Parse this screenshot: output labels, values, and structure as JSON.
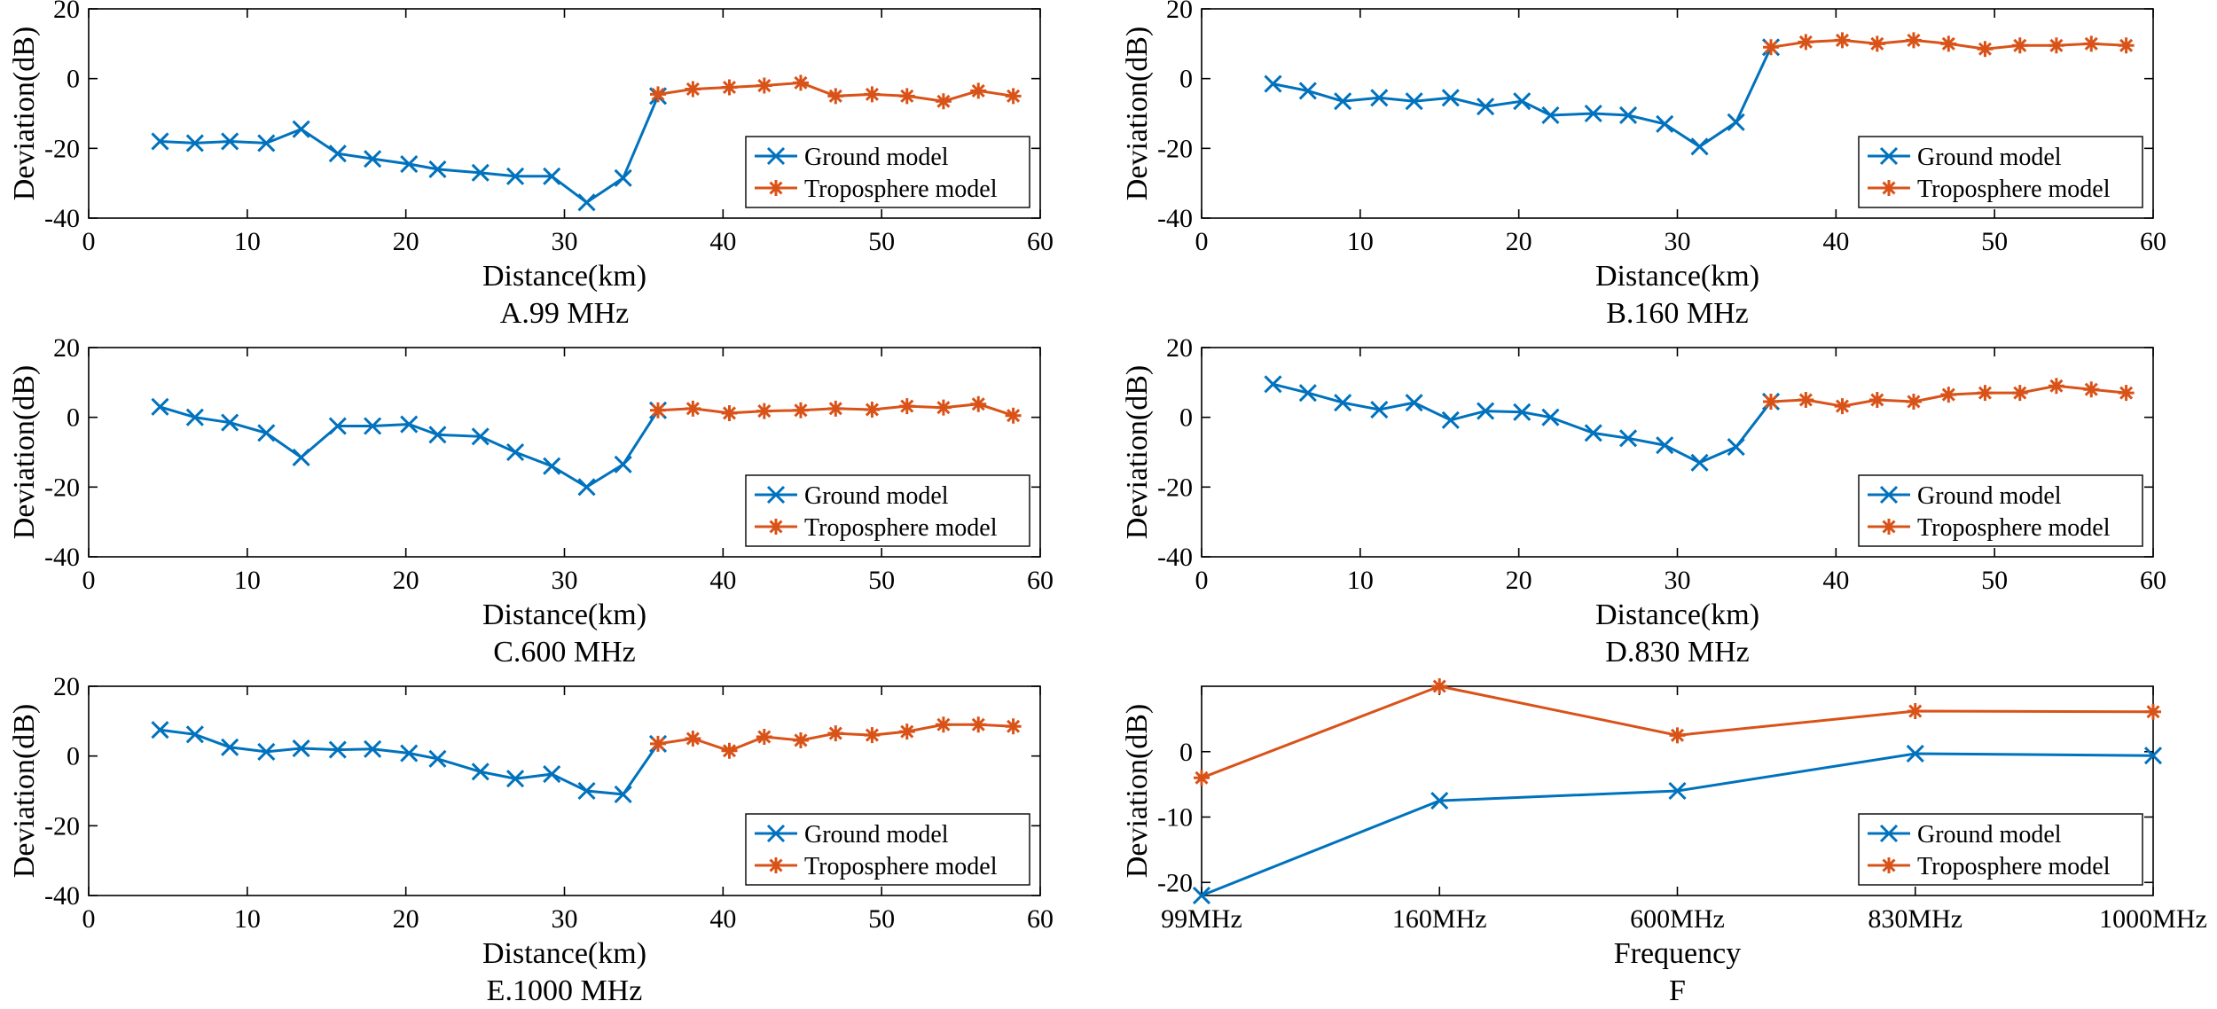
{
  "colors": {
    "ground": "#0072BD",
    "troposphere": "#D95319"
  },
  "chart_data": [
    {
      "id": "A",
      "type": "line",
      "caption": "A.99 MHz",
      "xlabel": "Distance(km)",
      "ylabel": "Deviation(dB)",
      "xlim": [
        0,
        60
      ],
      "ylim": [
        -40,
        20
      ],
      "xticks": [
        0,
        10,
        20,
        30,
        40,
        50,
        60
      ],
      "yticks": [
        -40,
        -20,
        0,
        20
      ],
      "legend": [
        "Ground model",
        "Troposphere model"
      ],
      "series": [
        {
          "name": "Ground model",
          "marker": "x",
          "x": [
            4.5,
            6.7,
            8.9,
            11.2,
            13.4,
            15.7,
            17.9,
            20.2,
            22.0,
            24.7,
            26.9,
            29.2,
            31.4,
            33.7,
            35.9
          ],
          "y": [
            -18,
            -18.5,
            -18,
            -18.5,
            -14.5,
            -21.5,
            -23,
            -24.5,
            -26,
            -27,
            -28,
            -28,
            -35.5,
            -28.5,
            -5
          ]
        },
        {
          "name": "Troposphere model",
          "marker": "*",
          "x": [
            35.9,
            38.1,
            40.4,
            42.6,
            44.9,
            47.1,
            49.4,
            51.6,
            53.9,
            56.1,
            58.3
          ],
          "y": [
            -4.5,
            -3,
            -2.5,
            -2,
            -1.2,
            -5,
            -4.5,
            -5,
            -6.5,
            -3.5,
            -5
          ]
        }
      ]
    },
    {
      "id": "B",
      "type": "line",
      "caption": "B.160 MHz",
      "xlabel": "Distance(km)",
      "ylabel": "Deviation(dB)",
      "xlim": [
        0,
        60
      ],
      "ylim": [
        -40,
        20
      ],
      "xticks": [
        0,
        10,
        20,
        30,
        40,
        50,
        60
      ],
      "yticks": [
        -40,
        -20,
        0,
        20
      ],
      "legend": [
        "Ground model",
        "Troposphere model"
      ],
      "series": [
        {
          "name": "Ground model",
          "marker": "x",
          "x": [
            4.5,
            6.7,
            8.9,
            11.2,
            13.4,
            15.7,
            17.9,
            20.2,
            22.0,
            24.7,
            26.9,
            29.2,
            31.4,
            33.7,
            35.9
          ],
          "y": [
            -1.5,
            -3.5,
            -6.5,
            -5.5,
            -6.5,
            -5.5,
            -8,
            -6.5,
            -10.5,
            -10,
            -10.5,
            -13,
            -19.5,
            -12.5,
            9
          ]
        },
        {
          "name": "Troposphere model",
          "marker": "*",
          "x": [
            35.9,
            38.1,
            40.4,
            42.6,
            44.9,
            47.1,
            49.4,
            51.6,
            53.9,
            56.1,
            58.3
          ],
          "y": [
            9,
            10.5,
            11,
            10,
            11,
            10,
            8.5,
            9.5,
            9.5,
            10,
            9.5
          ]
        }
      ]
    },
    {
      "id": "C",
      "type": "line",
      "caption": "C.600 MHz",
      "xlabel": "Distance(km)",
      "ylabel": "Deviation(dB)",
      "xlim": [
        0,
        60
      ],
      "ylim": [
        -40,
        20
      ],
      "xticks": [
        0,
        10,
        20,
        30,
        40,
        50,
        60
      ],
      "yticks": [
        -40,
        -20,
        0,
        20
      ],
      "legend": [
        "Ground model",
        "Troposphere model"
      ],
      "series": [
        {
          "name": "Ground model",
          "marker": "x",
          "x": [
            4.5,
            6.7,
            8.9,
            11.2,
            13.4,
            15.7,
            17.9,
            20.2,
            22.0,
            24.7,
            26.9,
            29.2,
            31.4,
            33.7,
            35.9
          ],
          "y": [
            3,
            0,
            -1.5,
            -4.5,
            -11.5,
            -2.5,
            -2.5,
            -2,
            -5,
            -5.5,
            -10,
            -14,
            -20,
            -13.5,
            2
          ]
        },
        {
          "name": "Troposphere model",
          "marker": "*",
          "x": [
            35.9,
            38.1,
            40.4,
            42.6,
            44.9,
            47.1,
            49.4,
            51.6,
            53.9,
            56.1,
            58.3
          ],
          "y": [
            2,
            2.5,
            1.2,
            1.8,
            2,
            2.5,
            2.2,
            3.2,
            2.8,
            3.8,
            0.5
          ]
        }
      ]
    },
    {
      "id": "D",
      "type": "line",
      "caption": "D.830 MHz",
      "xlabel": "Distance(km)",
      "ylabel": "Deviation(dB)",
      "xlim": [
        0,
        60
      ],
      "ylim": [
        -40,
        20
      ],
      "xticks": [
        0,
        10,
        20,
        30,
        40,
        50,
        60
      ],
      "yticks": [
        -40,
        -20,
        0,
        20
      ],
      "legend": [
        "Ground model",
        "Troposphere model"
      ],
      "series": [
        {
          "name": "Ground model",
          "marker": "x",
          "x": [
            4.5,
            6.7,
            8.9,
            11.2,
            13.4,
            15.7,
            17.9,
            20.2,
            22.0,
            24.7,
            26.9,
            29.2,
            31.4,
            33.7,
            35.9
          ],
          "y": [
            9.5,
            7,
            4.2,
            2.2,
            4.2,
            -0.8,
            1.8,
            1.5,
            0,
            -4.5,
            -6,
            -8,
            -13,
            -8.5,
            4.5
          ]
        },
        {
          "name": "Troposphere model",
          "marker": "*",
          "x": [
            35.9,
            38.1,
            40.4,
            42.6,
            44.9,
            47.1,
            49.4,
            51.6,
            53.9,
            56.1,
            58.3
          ],
          "y": [
            4.5,
            5,
            3.2,
            5,
            4.5,
            6.5,
            7,
            7,
            9,
            8,
            7
          ]
        }
      ]
    },
    {
      "id": "E",
      "type": "line",
      "caption": "E.1000 MHz",
      "xlabel": "Distance(km)",
      "ylabel": "Deviation(dB)",
      "xlim": [
        0,
        60
      ],
      "ylim": [
        -40,
        20
      ],
      "xticks": [
        0,
        10,
        20,
        30,
        40,
        50,
        60
      ],
      "yticks": [
        -40,
        -20,
        0,
        20
      ],
      "legend": [
        "Ground model",
        "Troposphere model"
      ],
      "series": [
        {
          "name": "Ground model",
          "marker": "x",
          "x": [
            4.5,
            6.7,
            8.9,
            11.2,
            13.4,
            15.7,
            17.9,
            20.2,
            22.0,
            24.7,
            26.9,
            29.2,
            31.4,
            33.7,
            35.9
          ],
          "y": [
            7.5,
            6.2,
            2.5,
            1.2,
            2.2,
            1.8,
            2,
            0.8,
            -0.8,
            -4.5,
            -6.5,
            -5.2,
            -10,
            -11,
            3.5
          ]
        },
        {
          "name": "Troposphere model",
          "marker": "*",
          "x": [
            35.9,
            38.1,
            40.4,
            42.6,
            44.9,
            47.1,
            49.4,
            51.6,
            53.9,
            56.1,
            58.3
          ],
          "y": [
            3.5,
            5,
            1.5,
            5.5,
            4.5,
            6.5,
            6,
            7,
            9,
            9,
            8.5
          ]
        }
      ]
    },
    {
      "id": "F",
      "type": "line",
      "caption": "F",
      "xlabel": "Frequency",
      "ylabel": "Deviation(dB)",
      "categories": [
        "99MHz",
        "160MHz",
        "600MHz",
        "830MHz",
        "1000MHz"
      ],
      "ylim": [
        -22,
        10
      ],
      "yticks": [
        -20,
        -10,
        0
      ],
      "legend": [
        "Ground model",
        "Troposphere model"
      ],
      "series": [
        {
          "name": "Ground model",
          "marker": "x",
          "values": [
            -22,
            -7.5,
            -6,
            -0.3,
            -0.6
          ]
        },
        {
          "name": "Troposphere model",
          "marker": "*",
          "values": [
            -4,
            10,
            2.5,
            6.2,
            6.1
          ]
        }
      ]
    }
  ]
}
